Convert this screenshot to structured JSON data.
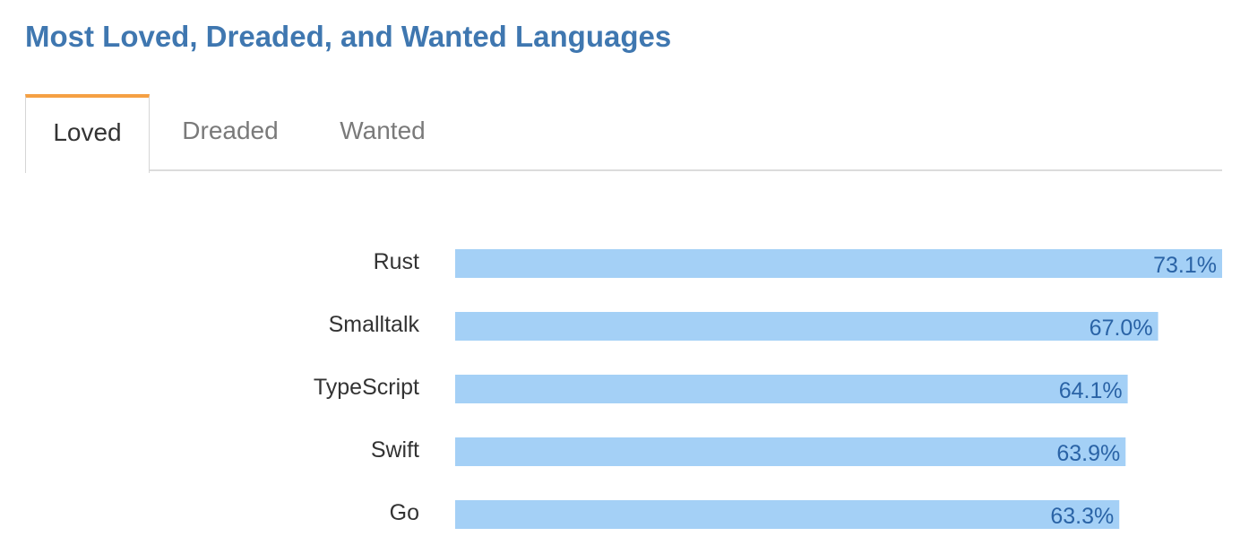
{
  "page": {
    "title": "Most Loved, Dreaded, and Wanted Languages"
  },
  "tabs": [
    {
      "label": "Loved",
      "active": true
    },
    {
      "label": "Dreaded",
      "active": false
    },
    {
      "label": "Wanted",
      "active": false
    }
  ],
  "colors": {
    "title": "#3f77b0",
    "active_tab_accent": "#f5a043",
    "bar_fill": "#a4d0f6",
    "value_label": "#2a63a6"
  },
  "chart_data": {
    "type": "bar",
    "orientation": "horizontal",
    "categories": [
      "Rust",
      "Smalltalk",
      "TypeScript",
      "Swift",
      "Go"
    ],
    "values": [
      73.1,
      67.0,
      64.1,
      63.9,
      63.3
    ],
    "value_labels": [
      "73.1%",
      "67.0%",
      "64.1%",
      "63.9%",
      "63.3%"
    ],
    "unit": "%",
    "xlim": [
      0,
      73.1
    ],
    "grid": false,
    "legend": "none"
  }
}
